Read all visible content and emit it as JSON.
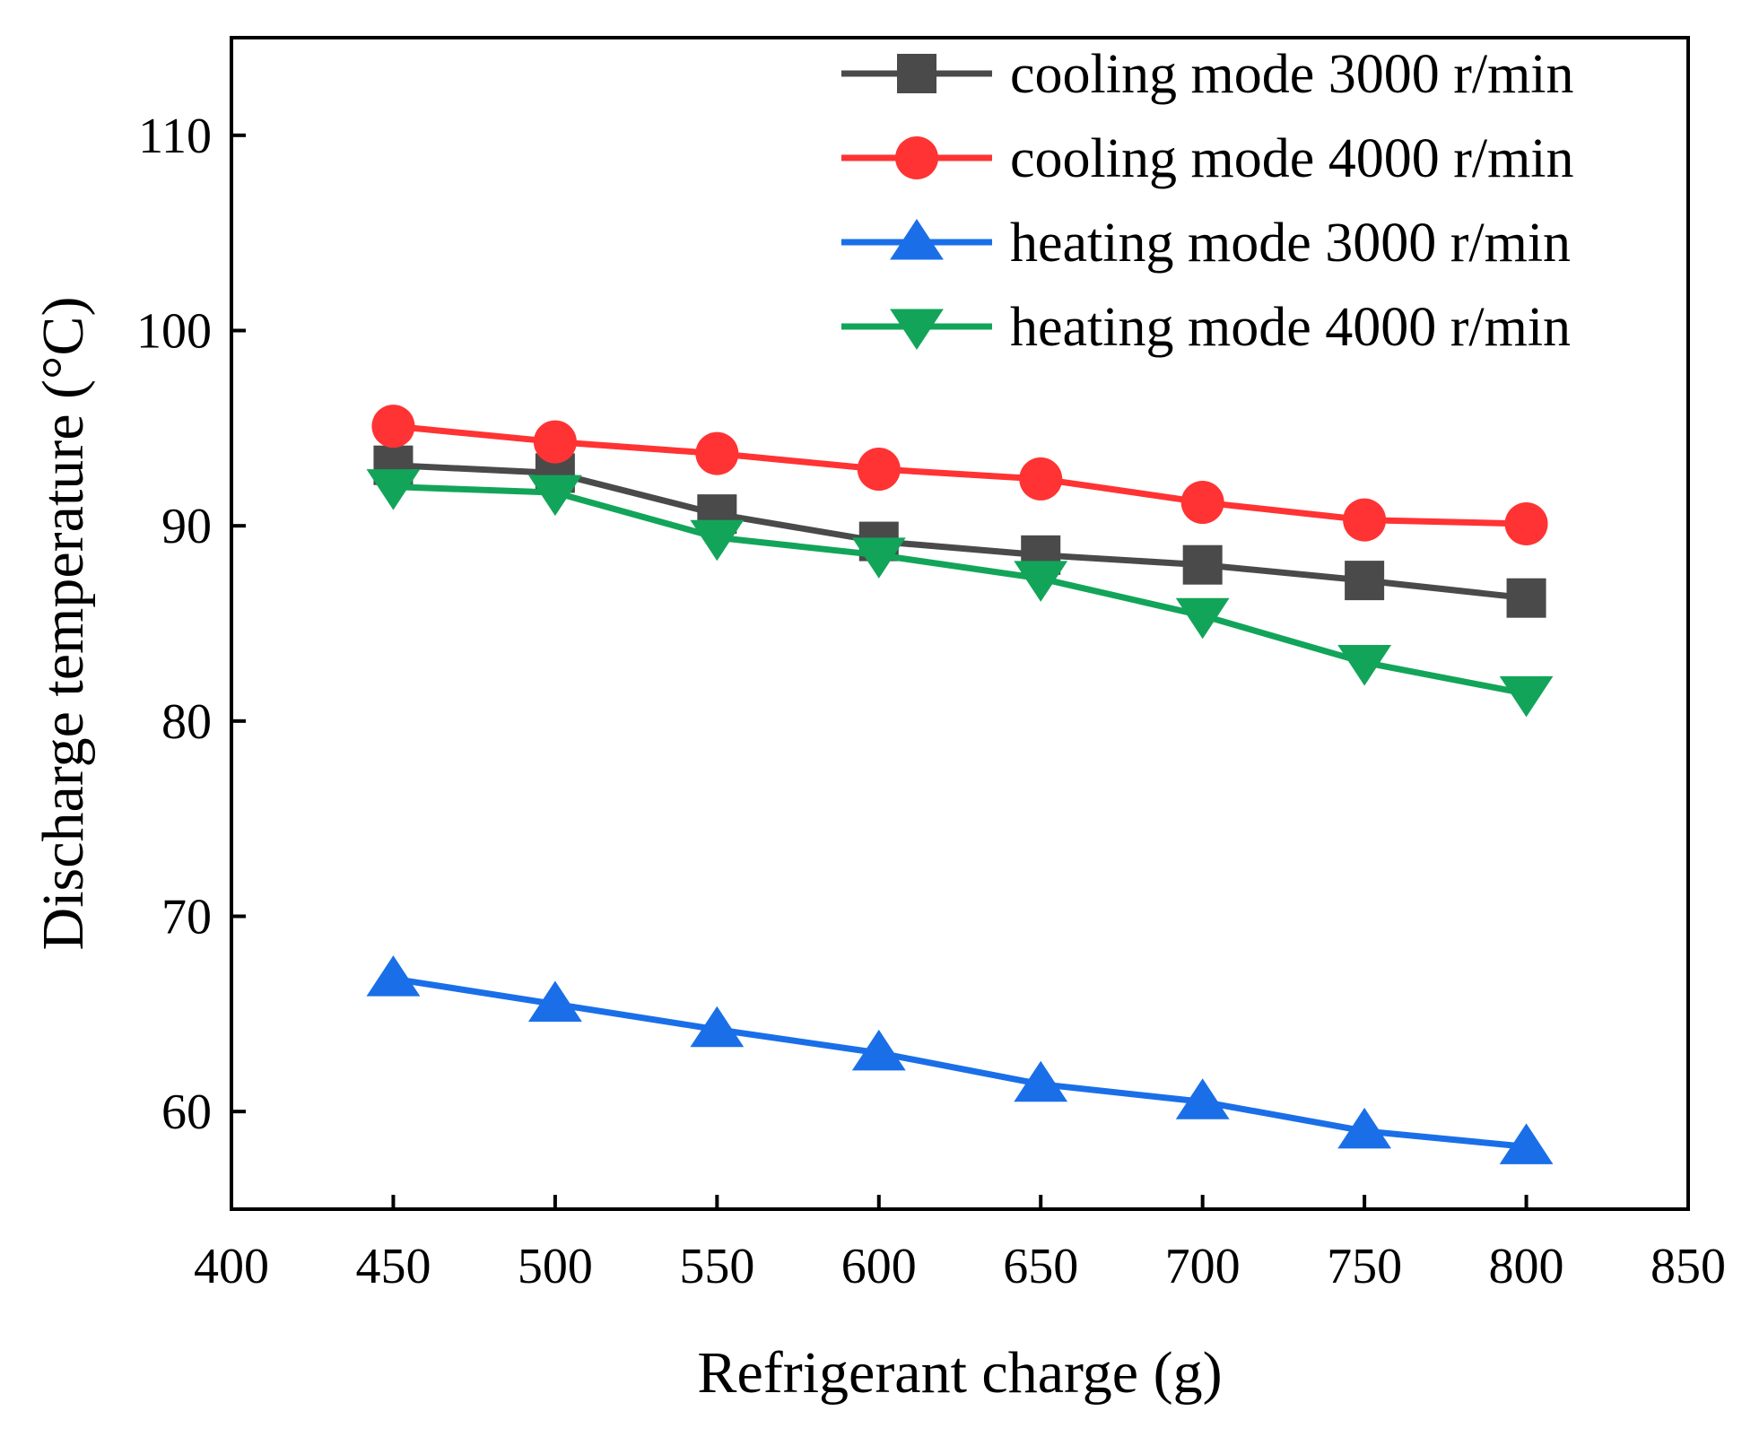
{
  "chart_data": {
    "type": "line",
    "title": "",
    "xlabel": "Refrigerant charge (g)",
    "ylabel": "Discharge temperature (°C)",
    "xlim": [
      400,
      850
    ],
    "ylim": [
      55,
      115
    ],
    "x_ticks": [
      400,
      450,
      500,
      550,
      600,
      650,
      700,
      750,
      800,
      850
    ],
    "y_ticks": [
      60,
      70,
      80,
      90,
      100,
      110
    ],
    "x": [
      450,
      500,
      550,
      600,
      650,
      700,
      750,
      800
    ],
    "grid": false,
    "legend_position": "top-right",
    "series": [
      {
        "name": "cooling mode 3000 r/min",
        "color": "#4a4a4a",
        "marker": "square",
        "values": [
          93.1,
          92.7,
          90.6,
          89.2,
          88.5,
          88.0,
          87.2,
          86.3
        ]
      },
      {
        "name": "cooling mode 4000 r/min",
        "color": "#ff3333",
        "marker": "circle",
        "values": [
          95.1,
          94.3,
          93.7,
          92.9,
          92.4,
          91.2,
          90.3,
          90.1
        ]
      },
      {
        "name": "heating mode 3000 r/min",
        "color": "#1a6fe8",
        "marker": "triangle-up",
        "values": [
          66.8,
          65.5,
          64.2,
          63.0,
          61.4,
          60.5,
          59.0,
          58.2
        ]
      },
      {
        "name": "heating mode 4000 r/min",
        "color": "#12a55a",
        "marker": "triangle-down",
        "values": [
          92.0,
          91.7,
          89.4,
          88.5,
          87.3,
          85.4,
          83.0,
          81.4
        ]
      }
    ]
  }
}
